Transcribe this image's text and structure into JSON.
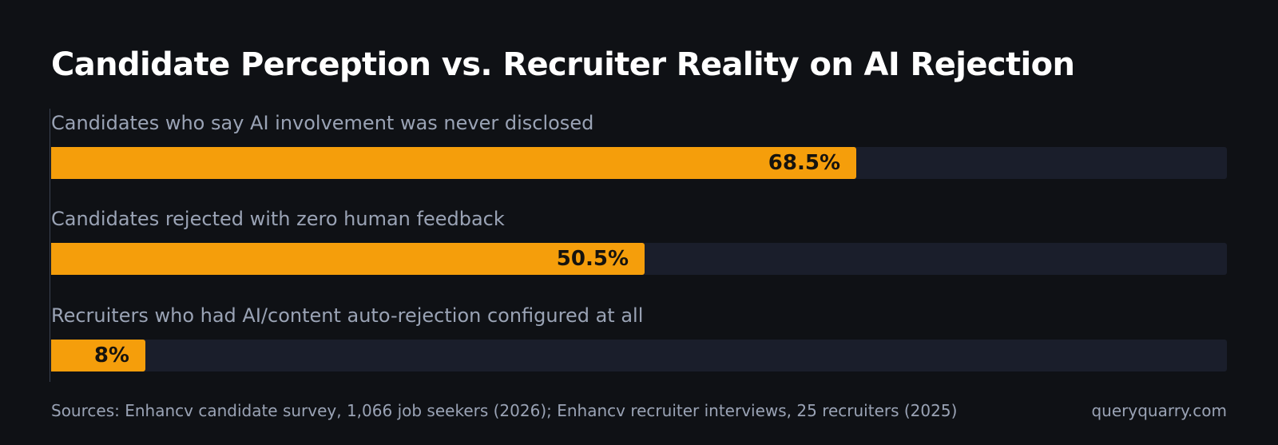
{
  "colors": {
    "background": "#0f1115",
    "bar": "#f59e0b",
    "track": "#1a1e2b",
    "label": "#9aa3b5"
  },
  "chart_data": {
    "type": "bar",
    "orientation": "horizontal",
    "title": "Candidate Perception vs. Recruiter Reality on AI Rejection",
    "categories": [
      "Candidates who say AI involvement was never disclosed",
      "Candidates rejected with zero human feedback",
      "Recruiters who had AI/content auto-rejection configured at all"
    ],
    "values": [
      68.5,
      50.5,
      8
    ],
    "value_labels": [
      "68.5%",
      "50.5%",
      "8%"
    ],
    "xlim": [
      0,
      100
    ],
    "grid": false
  },
  "footer": {
    "sources": "Sources: Enhancv candidate survey, 1,066 job seekers (2026); Enhancv recruiter interviews, 25 recruiters (2025)",
    "brand": "queryquarry.com"
  }
}
